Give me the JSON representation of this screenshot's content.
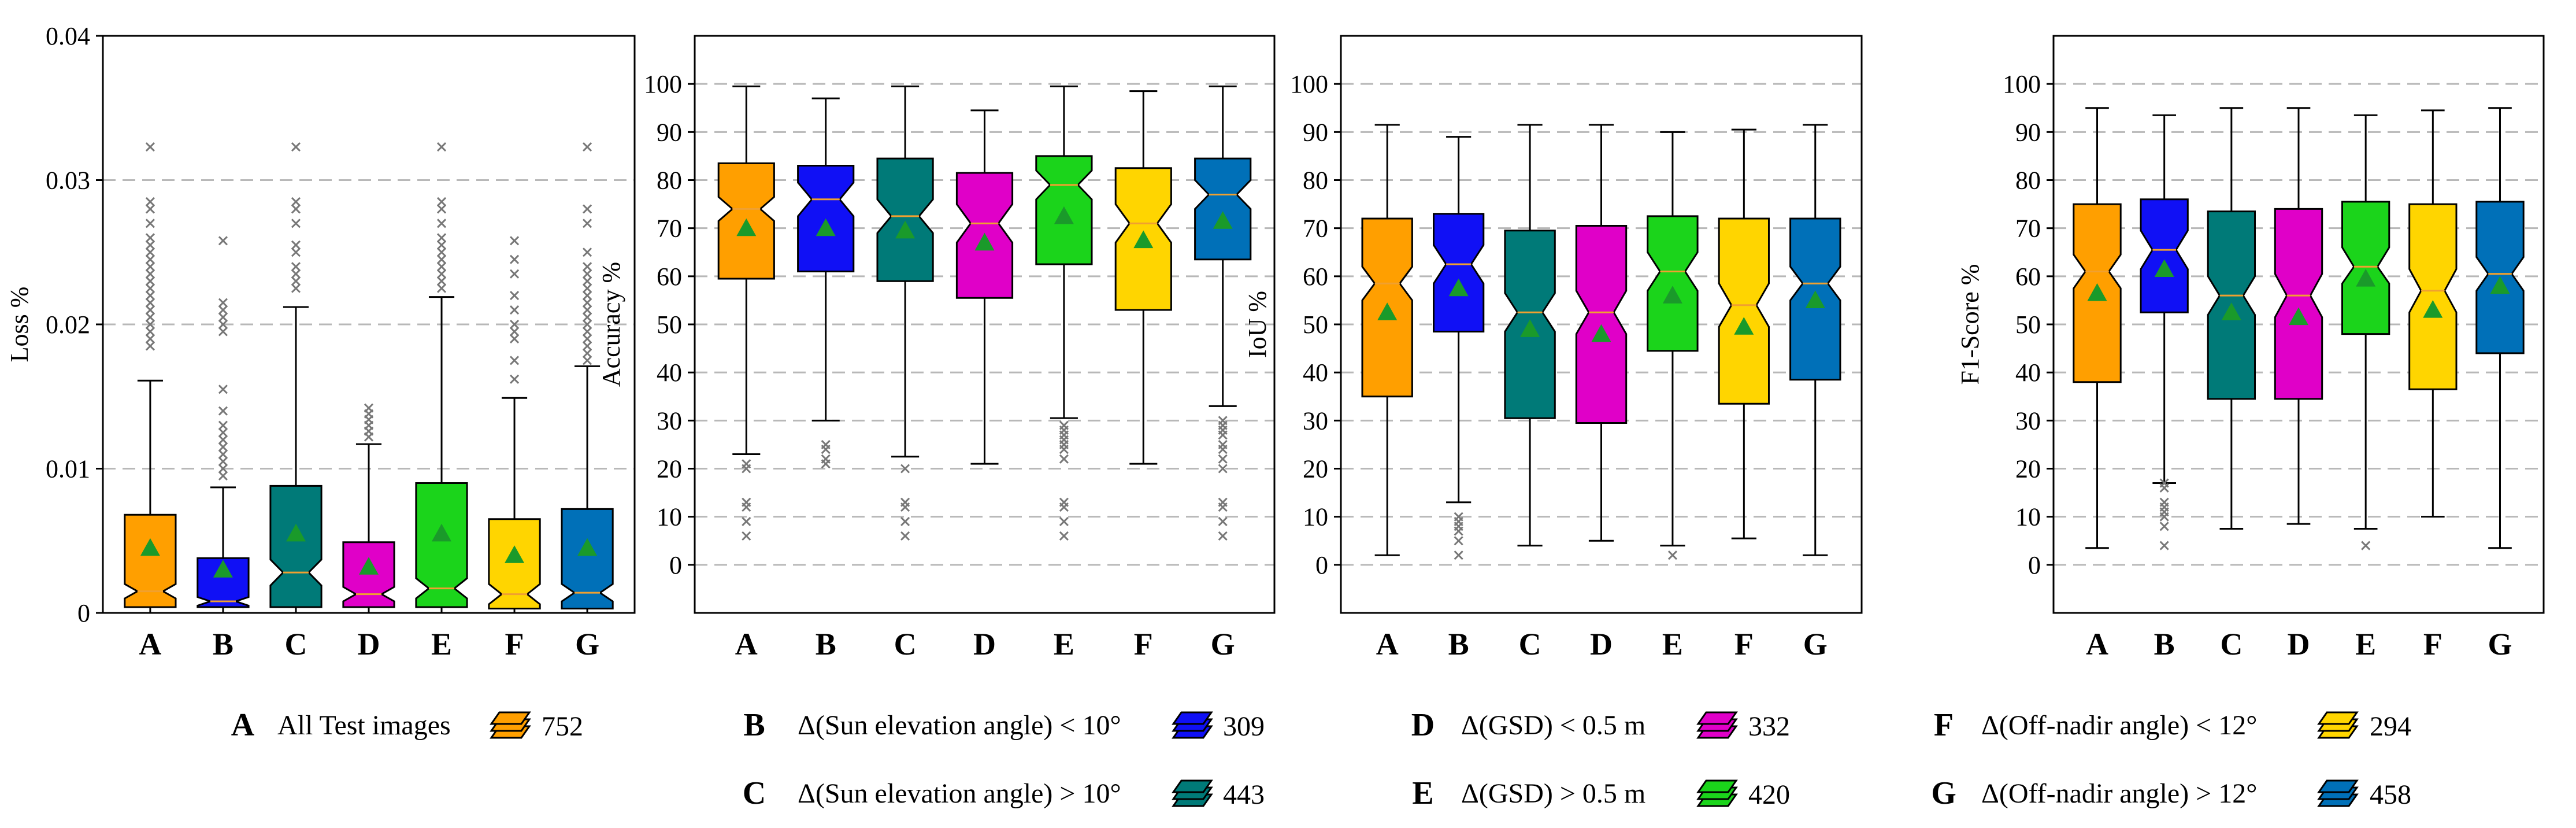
{
  "chart_data": [
    {
      "type": "boxplot",
      "panel": "loss",
      "ylabel": "Loss %",
      "ylim": [
        0,
        0.04
      ],
      "yticks": [
        0,
        0.01,
        0.02,
        0.03,
        0.04
      ],
      "ytick_labels": [
        "0",
        "0.01",
        "0.02",
        "0.03",
        "0.04"
      ],
      "grid": "horizontal dashed",
      "categories": [
        "A",
        "B",
        "C",
        "D",
        "E",
        "F",
        "G"
      ],
      "boxes": [
        {
          "label": "A",
          "whislo": 0.0,
          "q1": 0.0004,
          "med": 0.0015,
          "q3": 0.0068,
          "whishi": 0.0161,
          "mean": 0.0045,
          "notch_lo": 0.001,
          "notch_hi": 0.002,
          "fliers": [
            0.0185,
            0.019,
            0.0195,
            0.02,
            0.0205,
            0.021,
            0.0215,
            0.022,
            0.0225,
            0.023,
            0.0235,
            0.024,
            0.0245,
            0.025,
            0.0255,
            0.026,
            0.027,
            0.028,
            0.0285,
            0.0323
          ]
        },
        {
          "label": "B",
          "whislo": 0.0,
          "q1": 0.0004,
          "med": 0.0008,
          "q3": 0.0038,
          "whishi": 0.0087,
          "mean": 0.003,
          "notch_lo": 0.0005,
          "notch_hi": 0.0011,
          "fliers": [
            0.0095,
            0.01,
            0.0105,
            0.011,
            0.0115,
            0.012,
            0.0125,
            0.013,
            0.014,
            0.0155,
            0.0195,
            0.02,
            0.0205,
            0.021,
            0.0215,
            0.0258
          ]
        },
        {
          "label": "C",
          "whislo": 0.0,
          "q1": 0.0004,
          "med": 0.0028,
          "q3": 0.0088,
          "whishi": 0.0212,
          "mean": 0.0055,
          "notch_lo": 0.0019,
          "notch_hi": 0.0037,
          "fliers": [
            0.0225,
            0.023,
            0.0235,
            0.024,
            0.025,
            0.0255,
            0.027,
            0.028,
            0.0285,
            0.0323
          ]
        },
        {
          "label": "D",
          "whislo": 0.0,
          "q1": 0.0004,
          "med": 0.0013,
          "q3": 0.0049,
          "whishi": 0.0117,
          "mean": 0.0032,
          "notch_lo": 0.0008,
          "notch_hi": 0.0018,
          "fliers": [
            0.0122,
            0.0126,
            0.013,
            0.0134,
            0.0138,
            0.0142
          ]
        },
        {
          "label": "E",
          "whislo": 0.0,
          "q1": 0.0004,
          "med": 0.0017,
          "q3": 0.009,
          "whishi": 0.0219,
          "mean": 0.0055,
          "notch_lo": 0.001,
          "notch_hi": 0.0024,
          "fliers": [
            0.0225,
            0.023,
            0.0235,
            0.024,
            0.0245,
            0.025,
            0.0255,
            0.026,
            0.027,
            0.028,
            0.0285,
            0.0323
          ]
        },
        {
          "label": "F",
          "whislo": 0.0,
          "q1": 0.0003,
          "med": 0.0013,
          "q3": 0.0065,
          "whishi": 0.0149,
          "mean": 0.004,
          "notch_lo": 0.0006,
          "notch_hi": 0.002,
          "fliers": [
            0.0162,
            0.0175,
            0.019,
            0.0195,
            0.02,
            0.021,
            0.022,
            0.0235,
            0.0245,
            0.0258
          ]
        },
        {
          "label": "G",
          "whislo": 0.0,
          "q1": 0.0003,
          "med": 0.0014,
          "q3": 0.0072,
          "whishi": 0.0171,
          "mean": 0.0045,
          "notch_lo": 0.0008,
          "notch_hi": 0.002,
          "fliers": [
            0.0175,
            0.018,
            0.0185,
            0.019,
            0.0195,
            0.02,
            0.0205,
            0.021,
            0.0215,
            0.022,
            0.0225,
            0.023,
            0.0235,
            0.024,
            0.025,
            0.027,
            0.028,
            0.0323
          ]
        }
      ]
    },
    {
      "type": "boxplot",
      "panel": "accuracy",
      "ylabel": "Accuracy %",
      "ylim": [
        -10,
        110
      ],
      "yticks": [
        0,
        10,
        20,
        30,
        40,
        50,
        60,
        70,
        80,
        90,
        100
      ],
      "ytick_labels": [
        "0",
        "10",
        "20",
        "30",
        "40",
        "50",
        "60",
        "70",
        "80",
        "90",
        "100"
      ],
      "grid": "horizontal dashed",
      "categories": [
        "A",
        "B",
        "C",
        "D",
        "E",
        "F",
        "G"
      ],
      "boxes": [
        {
          "label": "A",
          "whislo": 23,
          "q1": 59.5,
          "med": 74,
          "q3": 83.5,
          "whishi": 99.5,
          "mean": 70,
          "notch_lo": 71.5,
          "notch_hi": 76.5,
          "fliers": [
            21,
            20,
            13,
            12,
            9,
            6
          ]
        },
        {
          "label": "B",
          "whislo": 30,
          "q1": 61,
          "med": 76,
          "q3": 83,
          "whishi": 97,
          "mean": 70,
          "notch_lo": 72.5,
          "notch_hi": 79.5,
          "fliers": [
            25,
            24,
            22,
            21
          ]
        },
        {
          "label": "C",
          "whislo": 22.5,
          "q1": 59,
          "med": 72.5,
          "q3": 84.5,
          "whishi": 99.5,
          "mean": 69.5,
          "notch_lo": 69,
          "notch_hi": 76,
          "fliers": [
            20,
            13,
            12,
            9,
            6
          ]
        },
        {
          "label": "D",
          "whislo": 21,
          "q1": 55.5,
          "med": 71,
          "q3": 81.5,
          "whishi": 94.5,
          "mean": 67,
          "notch_lo": 67,
          "notch_hi": 75,
          "fliers": []
        },
        {
          "label": "E",
          "whislo": 30.5,
          "q1": 62.5,
          "med": 79,
          "q3": 85,
          "whishi": 99.5,
          "mean": 72.5,
          "notch_lo": 76,
          "notch_hi": 82,
          "fliers": [
            29,
            28,
            27,
            26,
            25,
            24,
            22,
            13,
            12,
            9,
            6
          ]
        },
        {
          "label": "F",
          "whislo": 21,
          "q1": 53,
          "med": 71,
          "q3": 82.5,
          "whishi": 98.5,
          "mean": 67.5,
          "notch_lo": 67,
          "notch_hi": 75,
          "fliers": []
        },
        {
          "label": "G",
          "whislo": 33,
          "q1": 63.5,
          "med": 77,
          "q3": 84.5,
          "whishi": 99.5,
          "mean": 71.5,
          "notch_lo": 74,
          "notch_hi": 80,
          "fliers": [
            30,
            29,
            28,
            27,
            25,
            24,
            22,
            20,
            13,
            12,
            9,
            6
          ]
        }
      ]
    },
    {
      "type": "boxplot",
      "panel": "iou",
      "ylabel": "IoU %",
      "ylim": [
        -10,
        110
      ],
      "yticks": [
        0,
        10,
        20,
        30,
        40,
        50,
        60,
        70,
        80,
        90,
        100
      ],
      "ytick_labels": [
        "0",
        "10",
        "20",
        "30",
        "40",
        "50",
        "60",
        "70",
        "80",
        "90",
        "100"
      ],
      "grid": "horizontal dashed",
      "categories": [
        "A",
        "B",
        "C",
        "D",
        "E",
        "F",
        "G"
      ],
      "boxes": [
        {
          "label": "A",
          "whislo": 2,
          "q1": 35,
          "med": 58.5,
          "q3": 72,
          "whishi": 91.5,
          "mean": 52.5,
          "notch_lo": 55,
          "notch_hi": 62,
          "fliers": []
        },
        {
          "label": "B",
          "whislo": 13,
          "q1": 48.5,
          "med": 62.5,
          "q3": 73,
          "whishi": 89,
          "mean": 57.5,
          "notch_lo": 58.5,
          "notch_hi": 66.5,
          "fliers": [
            10,
            9,
            8,
            7,
            5,
            2
          ]
        },
        {
          "label": "C",
          "whislo": 4,
          "q1": 30.5,
          "med": 52.5,
          "q3": 69.5,
          "whishi": 91.5,
          "mean": 49,
          "notch_lo": 48.5,
          "notch_hi": 56.5,
          "fliers": []
        },
        {
          "label": "D",
          "whislo": 5,
          "q1": 29.5,
          "med": 52.5,
          "q3": 70.5,
          "whishi": 91.5,
          "mean": 48,
          "notch_lo": 48,
          "notch_hi": 57,
          "fliers": []
        },
        {
          "label": "E",
          "whislo": 4,
          "q1": 44.5,
          "med": 61,
          "q3": 72.5,
          "whishi": 90,
          "mean": 56,
          "notch_lo": 57,
          "notch_hi": 65,
          "fliers": [
            2
          ]
        },
        {
          "label": "F",
          "whislo": 5.5,
          "q1": 33.5,
          "med": 54,
          "q3": 72,
          "whishi": 90.5,
          "mean": 49.5,
          "notch_lo": 49.5,
          "notch_hi": 58.5,
          "fliers": []
        },
        {
          "label": "G",
          "whislo": 2,
          "q1": 38.5,
          "med": 58.5,
          "q3": 72,
          "whishi": 91.5,
          "mean": 55,
          "notch_lo": 55,
          "notch_hi": 62,
          "fliers": []
        }
      ]
    },
    {
      "type": "boxplot",
      "panel": "f1",
      "ylabel": "F1-Score %",
      "ylim": [
        -10,
        110
      ],
      "yticks": [
        0,
        10,
        20,
        30,
        40,
        50,
        60,
        70,
        80,
        90,
        100
      ],
      "ytick_labels": [
        "0",
        "10",
        "20",
        "30",
        "40",
        "50",
        "60",
        "70",
        "80",
        "90",
        "100"
      ],
      "grid": "horizontal dashed",
      "categories": [
        "A",
        "B",
        "C",
        "D",
        "E",
        "F",
        "G"
      ],
      "boxes": [
        {
          "label": "A",
          "whislo": 3.5,
          "q1": 38,
          "med": 61,
          "q3": 75,
          "whishi": 95,
          "mean": 56.5,
          "notch_lo": 57.5,
          "notch_hi": 64.5,
          "fliers": []
        },
        {
          "label": "B",
          "whislo": 17,
          "q1": 52.5,
          "med": 65.5,
          "q3": 76,
          "whishi": 93.5,
          "mean": 61.5,
          "notch_lo": 61.5,
          "notch_hi": 69.5,
          "fliers": [
            17,
            16,
            13,
            12,
            11,
            10,
            8,
            4
          ]
        },
        {
          "label": "C",
          "whislo": 7.5,
          "q1": 34.5,
          "med": 56,
          "q3": 73.5,
          "whishi": 95,
          "mean": 52.5,
          "notch_lo": 52,
          "notch_hi": 60,
          "fliers": []
        },
        {
          "label": "D",
          "whislo": 8.5,
          "q1": 34.5,
          "med": 56,
          "q3": 74,
          "whishi": 95,
          "mean": 51.5,
          "notch_lo": 51.5,
          "notch_hi": 60.5,
          "fliers": []
        },
        {
          "label": "E",
          "whislo": 7.5,
          "q1": 48,
          "med": 62,
          "q3": 75.5,
          "whishi": 93.5,
          "mean": 59.5,
          "notch_lo": 58.5,
          "notch_hi": 66,
          "fliers": [
            4
          ]
        },
        {
          "label": "F",
          "whislo": 10,
          "q1": 36.5,
          "med": 57,
          "q3": 75,
          "whishi": 94.5,
          "mean": 53,
          "notch_lo": 52.5,
          "notch_hi": 61.5,
          "fliers": []
        },
        {
          "label": "G",
          "whislo": 3.5,
          "q1": 44,
          "med": 60.5,
          "q3": 75.5,
          "whishi": 95,
          "mean": 58,
          "notch_lo": 57,
          "notch_hi": 64,
          "fliers": []
        }
      ]
    }
  ],
  "series_colors": {
    "A": "#ff9f00",
    "B": "#1010f5",
    "C": "#007a78",
    "D": "#e000c8",
    "E": "#1bd41b",
    "F": "#ffd500",
    "G": "#0070b8"
  },
  "legend": [
    {
      "letter": "A",
      "text": "All Test images",
      "count": "752",
      "icon": "stacked-images-icon"
    },
    {
      "letter": "B",
      "text": "Δ(Sun elevation angle) < 10°",
      "count": "309",
      "icon": "stacked-images-icon"
    },
    {
      "letter": "C",
      "text": "Δ(Sun elevation angle) > 10°",
      "count": "443",
      "icon": "stacked-images-icon"
    },
    {
      "letter": "D",
      "text": "Δ(GSD) < 0.5 m",
      "count": "332",
      "icon": "stacked-images-icon"
    },
    {
      "letter": "E",
      "text": "Δ(GSD) > 0.5 m",
      "count": "420",
      "icon": "stacked-images-icon"
    },
    {
      "letter": "F",
      "text": "Δ(Off-nadir angle) < 12°",
      "count": "294",
      "icon": "stacked-images-icon"
    },
    {
      "letter": "G",
      "text": "Δ(Off-nadir angle) > 12°",
      "count": "458",
      "icon": "stacked-images-icon"
    }
  ]
}
